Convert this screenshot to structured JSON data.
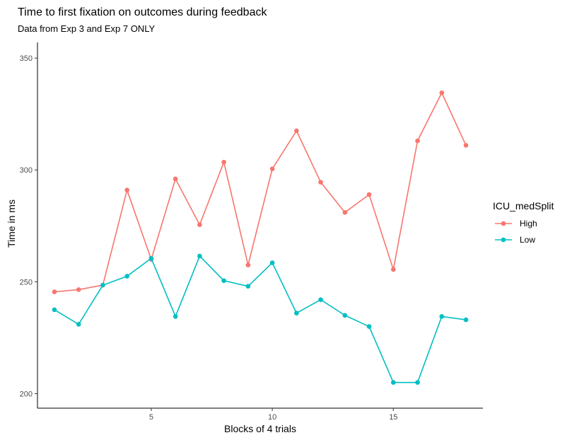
{
  "chart_data": {
    "type": "line",
    "title": "Time to first fixation on outcomes during feedback",
    "subtitle": "Data from Exp 3 and Exp 7 ONLY",
    "xlabel": "Blocks of 4 trials",
    "ylabel": "Time in ms",
    "xlim": [
      0.3,
      18.7
    ],
    "ylim": [
      193.5,
      357
    ],
    "x_ticks": [
      5,
      10,
      15
    ],
    "y_ticks": [
      200,
      250,
      300,
      350
    ],
    "grid": false,
    "legend": {
      "title": "ICU_medSplit",
      "position": "right"
    },
    "x": [
      1,
      2,
      3,
      4,
      5,
      6,
      7,
      8,
      9,
      10,
      11,
      12,
      13,
      14,
      15,
      16,
      17,
      18
    ],
    "series": [
      {
        "name": "High",
        "color": "#F8766D",
        "values": [
          245.5,
          246.5,
          248.5,
          291,
          260,
          296,
          275.5,
          303.5,
          257.5,
          300.5,
          317.5,
          294.5,
          281,
          289,
          255.5,
          313,
          334.5,
          311
        ]
      },
      {
        "name": "Low",
        "color": "#00BFC4",
        "values": [
          237.5,
          231,
          248.5,
          252.5,
          260.5,
          234.5,
          261.5,
          250.5,
          248,
          258.5,
          236,
          242,
          235,
          230,
          205,
          205,
          234.5,
          233
        ]
      }
    ]
  }
}
